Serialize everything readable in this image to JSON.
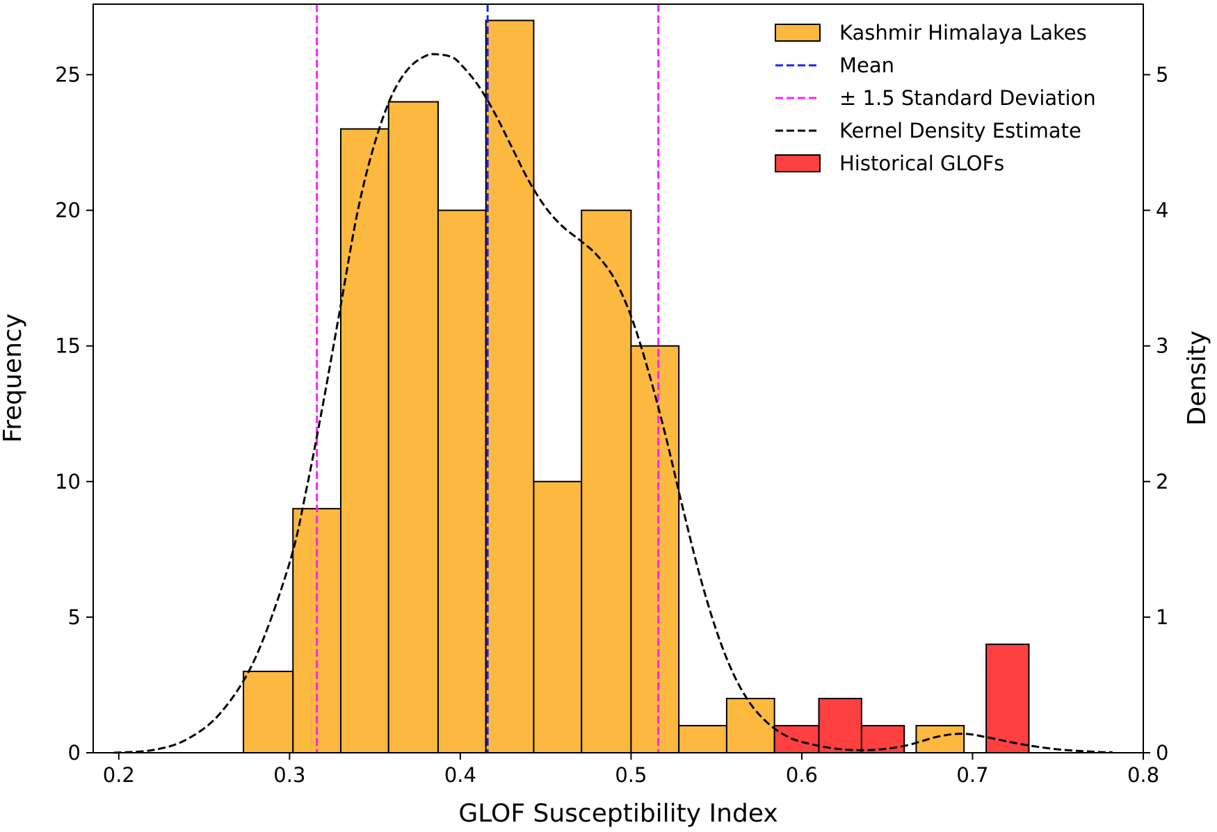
{
  "chart_data": {
    "type": "bar",
    "title": "",
    "xlabel": "GLOF Susceptibility Index",
    "ylabel": "Frequency",
    "ylabel_right": "Density",
    "xlim": [
      0.185,
      0.8
    ],
    "ylim": [
      0,
      27.6
    ],
    "ylim_right": [
      0,
      5.52
    ],
    "x_ticks": [
      0.2,
      0.3,
      0.4,
      0.5,
      0.6,
      0.7,
      0.8
    ],
    "x_tick_labels": [
      "0.2",
      "0.3",
      "0.4",
      "0.5",
      "0.6",
      "0.7",
      "0.8"
    ],
    "y_ticks": [
      0,
      5,
      10,
      15,
      20,
      25
    ],
    "y_tick_labels": [
      "0",
      "5",
      "10",
      "15",
      "20",
      "25"
    ],
    "y_ticks_right": [
      0,
      1,
      2,
      3,
      4,
      5
    ],
    "y_tick_labels_right": [
      "0",
      "1",
      "2",
      "3",
      "4",
      "5"
    ],
    "grid": false,
    "legend_position": "top-right",
    "legend": [
      {
        "label": "Kashmir Himalaya Lakes",
        "kind": "patch",
        "color": "#FDB83F"
      },
      {
        "label": "Mean",
        "kind": "dashed-line",
        "color": "#1F1FFF"
      },
      {
        "label": "± 1.5 Standard Deviation",
        "kind": "dashed-line",
        "color": "#FF1FFF"
      },
      {
        "label": "Kernel Density Estimate",
        "kind": "dashed-line",
        "color": "#000000"
      },
      {
        "label": "Historical GLOFs",
        "kind": "patch",
        "color": "#FF4040"
      }
    ],
    "series": [
      {
        "name": "Kashmir Himalaya Lakes",
        "color": "#FDB83F",
        "bins": [
          {
            "x0": 0.273,
            "x1": 0.302,
            "count": 3
          },
          {
            "x0": 0.302,
            "x1": 0.33,
            "count": 9
          },
          {
            "x0": 0.33,
            "x1": 0.358,
            "count": 23
          },
          {
            "x0": 0.358,
            "x1": 0.387,
            "count": 24
          },
          {
            "x0": 0.387,
            "x1": 0.415,
            "count": 20
          },
          {
            "x0": 0.415,
            "x1": 0.443,
            "count": 27
          },
          {
            "x0": 0.443,
            "x1": 0.471,
            "count": 10
          },
          {
            "x0": 0.471,
            "x1": 0.5,
            "count": 20
          },
          {
            "x0": 0.5,
            "x1": 0.528,
            "count": 15
          },
          {
            "x0": 0.528,
            "x1": 0.556,
            "count": 1
          },
          {
            "x0": 0.556,
            "x1": 0.584,
            "count": 2
          },
          {
            "x0": 0.667,
            "x1": 0.695,
            "count": 1
          }
        ]
      },
      {
        "name": "Historical GLOFs",
        "color": "#FF4040",
        "bins": [
          {
            "x0": 0.584,
            "x1": 0.61,
            "count": 1
          },
          {
            "x0": 0.61,
            "x1": 0.635,
            "count": 2
          },
          {
            "x0": 0.635,
            "x1": 0.66,
            "count": 1
          },
          {
            "x0": 0.708,
            "x1": 0.733,
            "count": 4
          }
        ]
      }
    ],
    "mean": {
      "x": 0.416,
      "color": "#1F1FFF"
    },
    "std_lines": {
      "x": [
        0.316,
        0.516
      ],
      "color": "#FF1FFF"
    },
    "kde": {
      "name": "Kernel Density Estimate",
      "color": "#000000",
      "x": [
        0.197,
        0.22,
        0.24,
        0.26,
        0.28,
        0.3,
        0.31,
        0.32,
        0.33,
        0.34,
        0.35,
        0.36,
        0.37,
        0.38,
        0.387,
        0.395,
        0.4,
        0.41,
        0.42,
        0.43,
        0.44,
        0.45,
        0.46,
        0.47,
        0.48,
        0.49,
        0.5,
        0.51,
        0.52,
        0.53,
        0.54,
        0.55,
        0.56,
        0.57,
        0.58,
        0.59,
        0.6,
        0.62,
        0.64,
        0.66,
        0.68,
        0.695,
        0.71,
        0.73,
        0.75,
        0.77,
        0.782
      ],
      "y": [
        0.0,
        0.02,
        0.1,
        0.3,
        0.7,
        1.4,
        1.95,
        2.6,
        3.3,
        4.0,
        4.5,
        4.85,
        5.05,
        5.14,
        5.15,
        5.13,
        5.08,
        4.93,
        4.72,
        4.47,
        4.22,
        4.02,
        3.88,
        3.78,
        3.67,
        3.5,
        3.22,
        2.82,
        2.35,
        1.82,
        1.32,
        0.9,
        0.58,
        0.36,
        0.22,
        0.13,
        0.08,
        0.03,
        0.02,
        0.05,
        0.12,
        0.14,
        0.11,
        0.06,
        0.025,
        0.008,
        0.003
      ]
    }
  }
}
